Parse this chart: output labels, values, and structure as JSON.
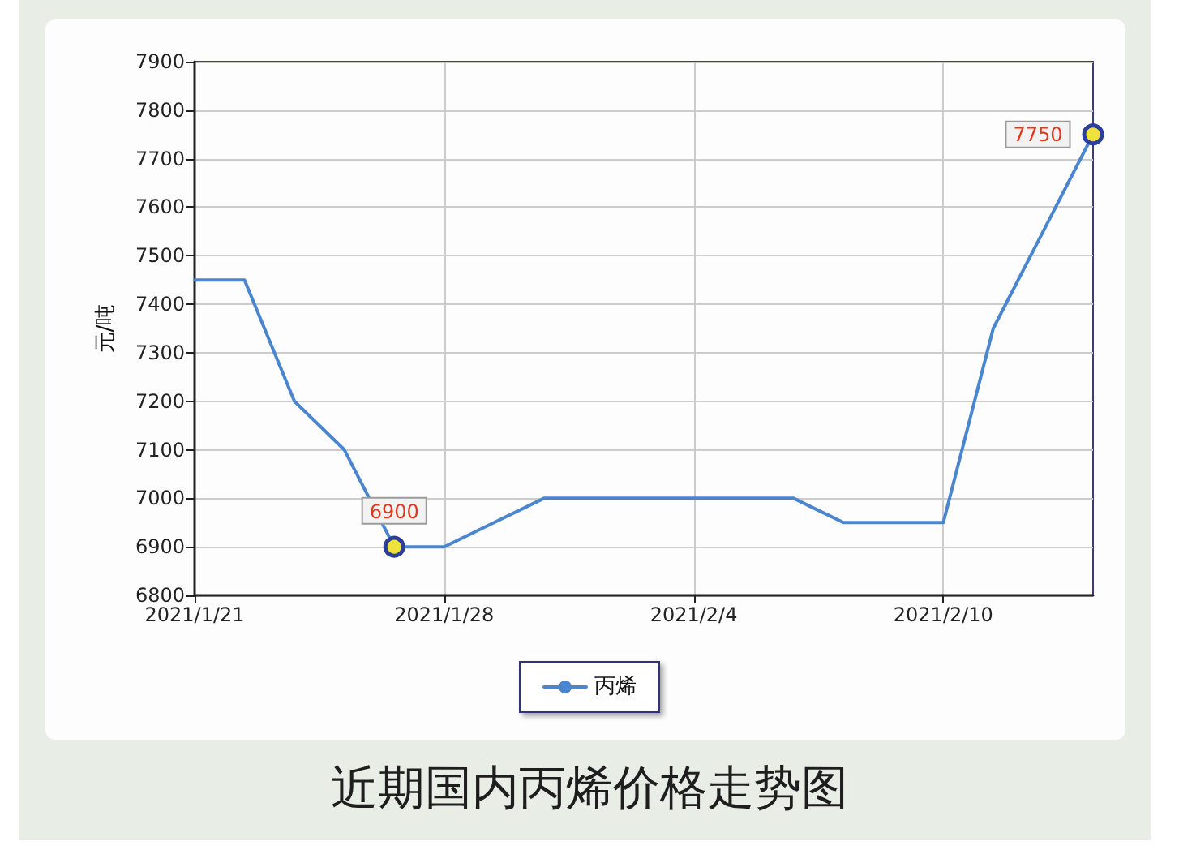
{
  "chart_data": {
    "type": "line",
    "title": "近期国内丙烯价格走势图",
    "ylabel": "元/吨",
    "categories": [
      "2021/1/21",
      null,
      null,
      null,
      null,
      "2021/1/28",
      null,
      null,
      null,
      null,
      "2021/2/4",
      null,
      null,
      null,
      null,
      "2021/2/10",
      null,
      null,
      null
    ],
    "series": [
      {
        "name": "丙烯",
        "color": "#4a86cf",
        "values": [
          7450,
          7450,
          7200,
          7100,
          6900,
          6900,
          6950,
          7000,
          7000,
          7000,
          7000,
          7000,
          7000,
          6950,
          6950,
          6950,
          7350,
          7550,
          7750
        ],
        "value_labels": [
          null,
          null,
          null,
          null,
          "6900",
          null,
          null,
          null,
          null,
          null,
          null,
          null,
          null,
          null,
          null,
          null,
          null,
          null,
          "7750"
        ]
      }
    ],
    "ylim": [
      6800,
      7900
    ],
    "yticks": [
      6800,
      6900,
      7000,
      7100,
      7200,
      7300,
      7400,
      7500,
      7600,
      7700,
      7800,
      7900
    ],
    "grid": true,
    "legend": "bottom"
  }
}
